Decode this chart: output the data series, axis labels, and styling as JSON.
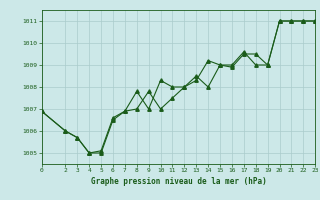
{
  "title": "Graphe pression niveau de la mer (hPa)",
  "bg_color": "#cce8e8",
  "grid_color": "#aacccc",
  "line_color": "#1a5c1a",
  "xlim": [
    0,
    23
  ],
  "ylim": [
    1004.5,
    1011.5
  ],
  "yticks": [
    1005,
    1006,
    1007,
    1008,
    1009,
    1010,
    1011
  ],
  "xticks": [
    0,
    2,
    3,
    4,
    5,
    6,
    7,
    8,
    9,
    10,
    11,
    12,
    13,
    14,
    15,
    16,
    17,
    18,
    19,
    20,
    21,
    22,
    23
  ],
  "series1_x": [
    0,
    2,
    3,
    4,
    5,
    6,
    7,
    8,
    9,
    10,
    11,
    12,
    13,
    14,
    15,
    16,
    17,
    18,
    19,
    20,
    21,
    22,
    23
  ],
  "series1_y": [
    1006.9,
    1006.0,
    1005.7,
    1005.0,
    1005.0,
    1006.5,
    1006.9,
    1007.0,
    1007.8,
    1007.0,
    1007.5,
    1008.0,
    1008.3,
    1009.2,
    1009.0,
    1009.0,
    1009.6,
    1009.0,
    1009.0,
    1011.0,
    1011.0,
    1011.0,
    1011.0
  ],
  "series2_x": [
    0,
    2,
    3,
    4,
    5,
    6,
    7,
    8,
    9,
    10,
    11,
    12,
    13,
    14,
    15,
    16,
    17,
    18,
    19,
    20,
    21,
    22,
    23
  ],
  "series2_y": [
    1006.9,
    1006.0,
    1005.7,
    1005.0,
    1005.1,
    1006.6,
    1006.9,
    1007.8,
    1007.0,
    1008.3,
    1008.0,
    1008.0,
    1008.5,
    1008.0,
    1009.0,
    1008.9,
    1009.5,
    1009.5,
    1009.0,
    1011.0,
    1011.0,
    1011.0,
    1011.0
  ],
  "marker": "^",
  "marker_size": 2.5,
  "linewidth": 0.8,
  "tick_fontsize": 4.5,
  "xlabel_fontsize": 5.5
}
